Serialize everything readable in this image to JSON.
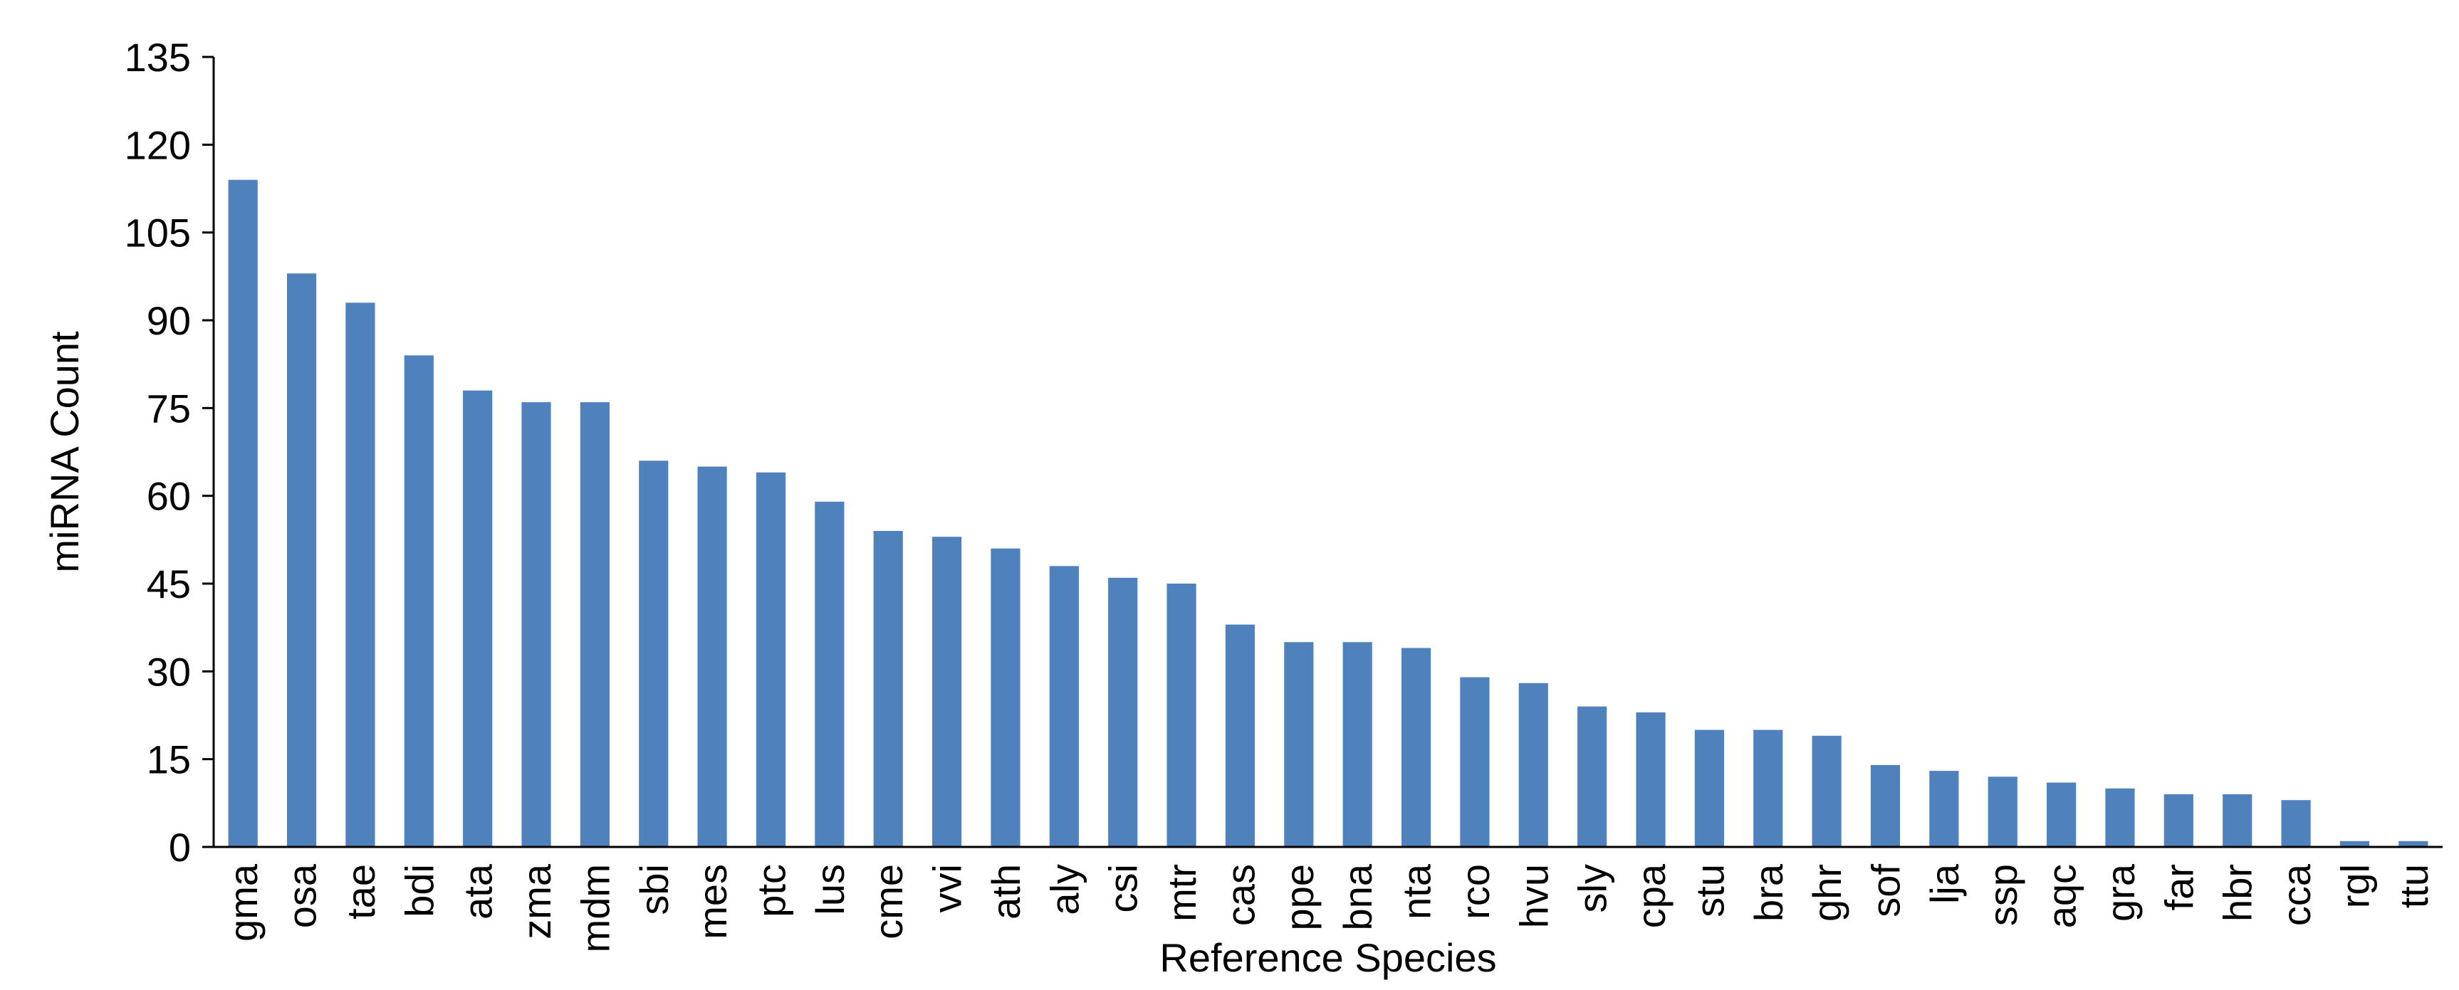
{
  "chart_data": {
    "type": "bar",
    "title": "",
    "xlabel": "Reference Species",
    "ylabel": "miRNA Count",
    "ylim": [
      0,
      135
    ],
    "yticks": [
      "0",
      "15",
      "30",
      "45",
      "60",
      "75",
      "90",
      "105",
      "120",
      "135"
    ],
    "grid": false,
    "legend": "none",
    "bar_color": "#4F81BD",
    "categories": [
      "gma",
      "osa",
      "tae",
      "bdi",
      "ata",
      "zma",
      "mdm",
      "sbi",
      "mes",
      "ptc",
      "lus",
      "cme",
      "vvi",
      "ath",
      "aly",
      "csi",
      "mtr",
      "cas",
      "ppe",
      "bna",
      "nta",
      "rco",
      "hvu",
      "sly",
      "cpa",
      "stu",
      "bra",
      "ghr",
      "sof",
      "lja",
      "ssp",
      "aqc",
      "gra",
      "far",
      "hbr",
      "cca",
      "rgl",
      "ttu"
    ],
    "values": [
      114,
      98,
      93,
      84,
      78,
      76,
      76,
      66,
      65,
      64,
      59,
      54,
      53,
      51,
      48,
      46,
      45,
      38,
      35,
      35,
      34,
      29,
      28,
      24,
      23,
      20,
      20,
      19,
      14,
      13,
      12,
      11,
      10,
      9,
      9,
      8,
      1,
      1
    ]
  }
}
